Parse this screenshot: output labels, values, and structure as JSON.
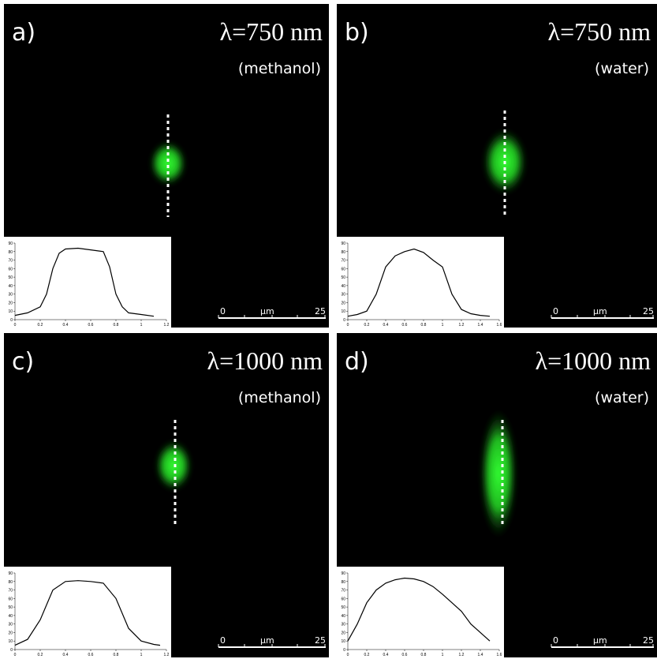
{
  "panels": [
    {
      "label": "a)",
      "wavelength": "λ=750 nm",
      "solvent": "(methanol)",
      "scale": {
        "start": "0",
        "unit": "µm",
        "end": "25"
      },
      "profile": {
        "xlim": [
          0,
          1.2
        ],
        "xticks": [
          0,
          0.2,
          0.4,
          0.6,
          0.8,
          1,
          1.2
        ],
        "ylim": [
          0,
          90
        ],
        "yticks": [
          0,
          10,
          20,
          30,
          40,
          50,
          60,
          70,
          80,
          90
        ],
        "x": [
          0,
          0.1,
          0.2,
          0.25,
          0.3,
          0.35,
          0.4,
          0.5,
          0.6,
          0.7,
          0.75,
          0.8,
          0.85,
          0.9,
          1.0,
          1.1
        ],
        "y": [
          5,
          8,
          15,
          30,
          60,
          78,
          83,
          84,
          82,
          80,
          62,
          30,
          15,
          8,
          6,
          4
        ]
      }
    },
    {
      "label": "b)",
      "wavelength": "λ=750 nm",
      "solvent": "(water)",
      "scale": {
        "start": "0",
        "unit": "µm",
        "end": "25"
      },
      "profile": {
        "xlim": [
          0,
          1.6
        ],
        "xticks": [
          0,
          0.2,
          0.4,
          0.6,
          0.8,
          1,
          1.2,
          1.4,
          1.6
        ],
        "ylim": [
          0,
          90
        ],
        "yticks": [
          0,
          10,
          20,
          30,
          40,
          50,
          60,
          70,
          80,
          90
        ],
        "x": [
          0,
          0.1,
          0.2,
          0.3,
          0.4,
          0.5,
          0.6,
          0.7,
          0.8,
          0.9,
          1.0,
          1.1,
          1.2,
          1.3,
          1.4,
          1.5
        ],
        "y": [
          4,
          6,
          10,
          30,
          62,
          75,
          80,
          83,
          79,
          70,
          62,
          30,
          12,
          7,
          5,
          4
        ]
      }
    },
    {
      "label": "c)",
      "wavelength": "λ=1000 nm",
      "solvent": "(methanol)",
      "scale": {
        "start": "0",
        "unit": "µm",
        "end": "25"
      },
      "profile": {
        "xlim": [
          0,
          1.2
        ],
        "xticks": [
          0,
          0.2,
          0.4,
          0.6,
          0.8,
          1,
          1.2
        ],
        "ylim": [
          0,
          90
        ],
        "yticks": [
          0,
          10,
          20,
          30,
          40,
          50,
          60,
          70,
          80,
          90
        ],
        "x": [
          0,
          0.1,
          0.2,
          0.3,
          0.4,
          0.5,
          0.6,
          0.7,
          0.8,
          0.9,
          1.0,
          1.1,
          1.15
        ],
        "y": [
          5,
          12,
          35,
          70,
          80,
          81,
          80,
          78,
          60,
          25,
          10,
          6,
          5
        ]
      }
    },
    {
      "label": "d)",
      "wavelength": "λ=1000 nm",
      "solvent": "(water)",
      "scale": {
        "start": "0",
        "unit": "µm",
        "end": "25"
      },
      "profile": {
        "xlim": [
          0,
          1.6
        ],
        "xticks": [
          0,
          0.2,
          0.4,
          0.6,
          0.8,
          1,
          1.2,
          1.4,
          1.6
        ],
        "ylim": [
          0,
          90
        ],
        "yticks": [
          0,
          10,
          20,
          30,
          40,
          50,
          60,
          70,
          80,
          90
        ],
        "x": [
          0,
          0.1,
          0.2,
          0.3,
          0.4,
          0.5,
          0.6,
          0.7,
          0.8,
          0.9,
          1.0,
          1.1,
          1.2,
          1.3,
          1.4,
          1.5
        ],
        "y": [
          10,
          30,
          55,
          70,
          78,
          82,
          84,
          83,
          80,
          74,
          65,
          55,
          45,
          30,
          20,
          10
        ]
      }
    }
  ]
}
